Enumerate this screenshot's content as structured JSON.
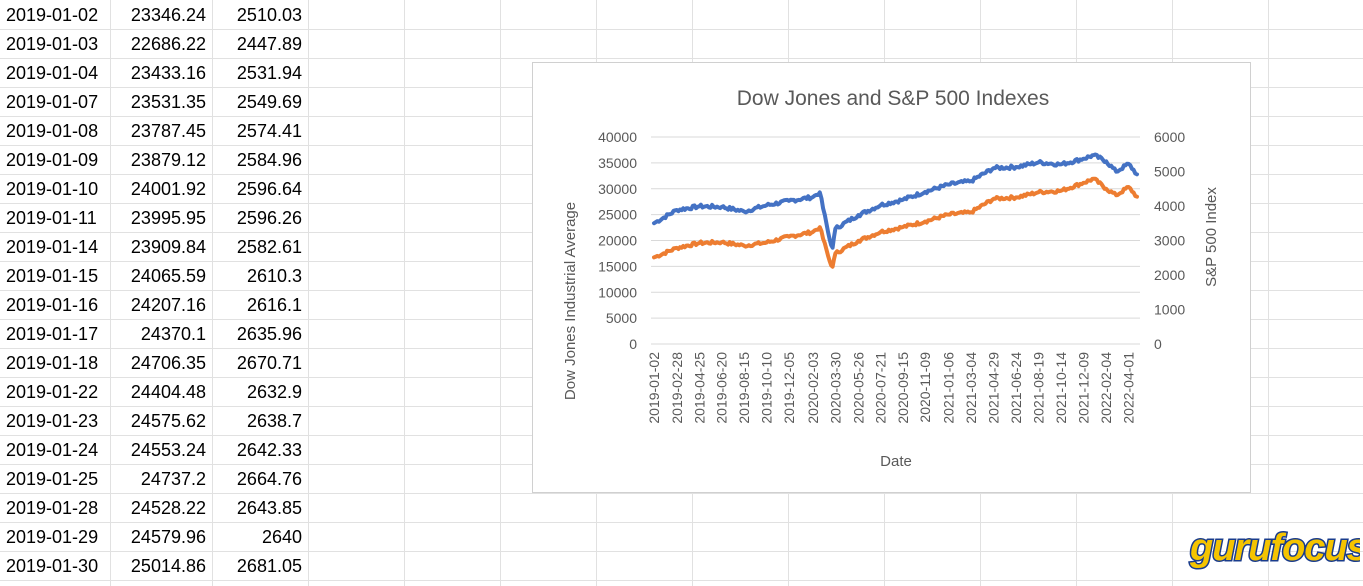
{
  "sheet": {
    "rows": [
      {
        "date": "2019-01-02",
        "dow": "23346.24",
        "sp": "2510.03"
      },
      {
        "date": "2019-01-03",
        "dow": "22686.22",
        "sp": "2447.89"
      },
      {
        "date": "2019-01-04",
        "dow": "23433.16",
        "sp": "2531.94"
      },
      {
        "date": "2019-01-07",
        "dow": "23531.35",
        "sp": "2549.69"
      },
      {
        "date": "2019-01-08",
        "dow": "23787.45",
        "sp": "2574.41"
      },
      {
        "date": "2019-01-09",
        "dow": "23879.12",
        "sp": "2584.96"
      },
      {
        "date": "2019-01-10",
        "dow": "24001.92",
        "sp": "2596.64"
      },
      {
        "date": "2019-01-11",
        "dow": "23995.95",
        "sp": "2596.26"
      },
      {
        "date": "2019-01-14",
        "dow": "23909.84",
        "sp": "2582.61"
      },
      {
        "date": "2019-01-15",
        "dow": "24065.59",
        "sp": "2610.3"
      },
      {
        "date": "2019-01-16",
        "dow": "24207.16",
        "sp": "2616.1"
      },
      {
        "date": "2019-01-17",
        "dow": "24370.1",
        "sp": "2635.96"
      },
      {
        "date": "2019-01-18",
        "dow": "24706.35",
        "sp": "2670.71"
      },
      {
        "date": "2019-01-22",
        "dow": "24404.48",
        "sp": "2632.9"
      },
      {
        "date": "2019-01-23",
        "dow": "24575.62",
        "sp": "2638.7"
      },
      {
        "date": "2019-01-24",
        "dow": "24553.24",
        "sp": "2642.33"
      },
      {
        "date": "2019-01-25",
        "dow": "24737.2",
        "sp": "2664.76"
      },
      {
        "date": "2019-01-28",
        "dow": "24528.22",
        "sp": "2643.85"
      },
      {
        "date": "2019-01-29",
        "dow": "24579.96",
        "sp": "2640"
      },
      {
        "date": "2019-01-30",
        "dow": "25014.86",
        "sp": "2681.05"
      }
    ]
  },
  "chart_data": {
    "type": "line",
    "title": "Dow Jones and S&P 500 Indexes",
    "xlabel": "Date",
    "ylabel": "Dow Jones Industrial Average",
    "y2label": "S&P 500 Index",
    "ylim": [
      0,
      40000
    ],
    "y2lim": [
      0,
      6000
    ],
    "yticks": [
      "0",
      "5000",
      "10000",
      "15000",
      "20000",
      "25000",
      "30000",
      "35000",
      "40000"
    ],
    "y2ticks": [
      "0",
      "1000",
      "2000",
      "3000",
      "4000",
      "5000",
      "6000"
    ],
    "xticks": [
      "2019-01-02",
      "2019-02-28",
      "2019-04-25",
      "2019-06-20",
      "2019-08-15",
      "2019-10-10",
      "2019-12-05",
      "2020-02-03",
      "2020-03-30",
      "2020-05-26",
      "2020-07-21",
      "2020-09-15",
      "2020-11-09",
      "2021-01-06",
      "2021-03-04",
      "2021-04-29",
      "2021-06-24",
      "2021-08-19",
      "2021-10-14",
      "2021-12-09",
      "2022-02-04",
      "2022-04-01"
    ],
    "grid": true,
    "colors": {
      "dow": "#4472c4",
      "sp": "#ed7d31"
    },
    "series": [
      {
        "axis": "left",
        "color": "#4472c4",
        "x": [
          "2019-01-02",
          "2019-02-28",
          "2019-04-25",
          "2019-06-20",
          "2019-08-15",
          "2019-10-10",
          "2019-12-05",
          "2020-02-03",
          "2020-02-20",
          "2020-03-16",
          "2020-03-23",
          "2020-03-30",
          "2020-05-26",
          "2020-07-21",
          "2020-09-15",
          "2020-11-09",
          "2021-01-06",
          "2021-03-04",
          "2021-04-29",
          "2021-06-24",
          "2021-08-19",
          "2021-10-14",
          "2021-12-09",
          "2022-01-04",
          "2022-02-04",
          "2022-03-01",
          "2022-04-01",
          "2022-04-22"
        ],
        "values": [
          23346,
          25900,
          26600,
          26500,
          25600,
          26800,
          27650,
          28400,
          29300,
          20100,
          18600,
          22300,
          24900,
          26850,
          27900,
          29400,
          30800,
          31500,
          34000,
          34200,
          35100,
          34700,
          35800,
          36500,
          35300,
          33300,
          34800,
          32800
        ]
      },
      {
        "axis": "right",
        "color": "#ed7d31",
        "x": [
          "2019-01-02",
          "2019-02-28",
          "2019-04-25",
          "2019-06-20",
          "2019-08-15",
          "2019-10-10",
          "2019-12-05",
          "2020-02-03",
          "2020-02-20",
          "2020-03-16",
          "2020-03-23",
          "2020-03-30",
          "2020-05-26",
          "2020-07-21",
          "2020-09-15",
          "2020-11-09",
          "2021-01-06",
          "2021-03-04",
          "2021-04-29",
          "2021-06-24",
          "2021-08-19",
          "2021-10-14",
          "2021-12-09",
          "2022-01-04",
          "2022-02-04",
          "2022-03-01",
          "2022-04-01",
          "2022-04-22"
        ],
        "values": [
          2510,
          2785,
          2925,
          2950,
          2850,
          2940,
          3110,
          3250,
          3385,
          2390,
          2240,
          2625,
          2990,
          3250,
          3390,
          3550,
          3750,
          3820,
          4210,
          4250,
          4400,
          4440,
          4670,
          4790,
          4500,
          4310,
          4550,
          4270
        ]
      }
    ]
  },
  "logo": {
    "text_guru": "guru",
    "text_focus": "focus"
  }
}
